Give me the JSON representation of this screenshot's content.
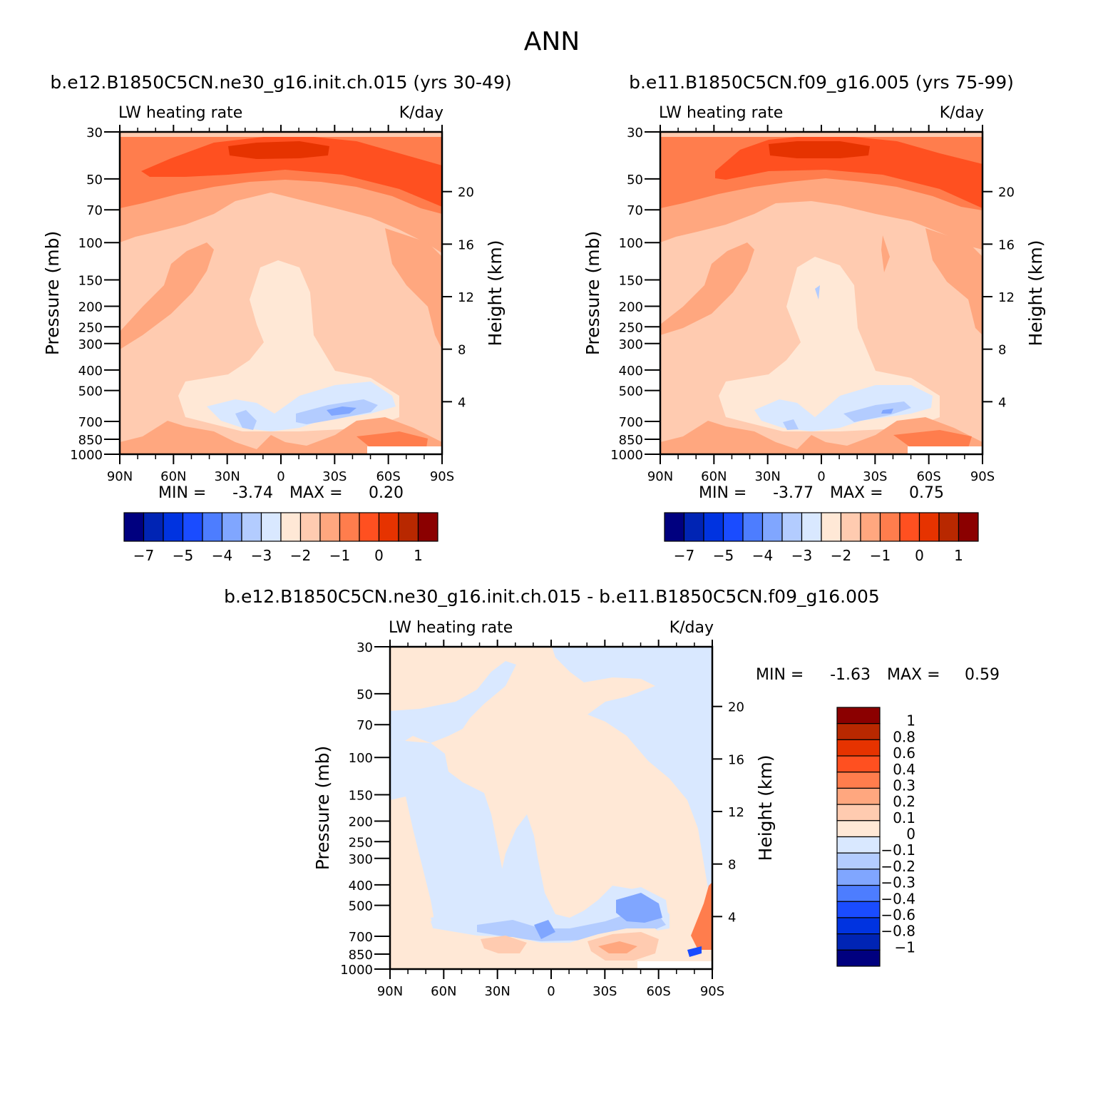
{
  "figure": {
    "title": "ANN"
  },
  "palette": {
    "neg": [
      "#00007f",
      "#0024b4",
      "#0033e0",
      "#1a4cff",
      "#4d7dff",
      "#80a6ff",
      "#b3ccff",
      "#d9e8ff"
    ],
    "pos": [
      "#ffe8d6",
      "#ffcbb0",
      "#ffa77f",
      "#ff7d4d",
      "#ff5020",
      "#e63300",
      "#b82800",
      "#8b0000"
    ]
  },
  "chart_data": [
    {
      "type": "heatmap",
      "title": "b.e12.B1850C5CN.ne30_g16.init.ch.015 (yrs 30-49)",
      "left_label": "LW heating rate",
      "right_label": "K/day",
      "x_ticks": [
        "90N",
        "60N",
        "30N",
        "0",
        "30S",
        "60S",
        "90S"
      ],
      "x_range": [
        90,
        -90
      ],
      "y_ticks": [
        30,
        50,
        70,
        100,
        150,
        200,
        250,
        300,
        400,
        500,
        700,
        850,
        1000
      ],
      "y_range": [
        1000,
        30
      ],
      "ylabel": "Pressure (mb)",
      "right_ticks": [
        20,
        16,
        12,
        8,
        4
      ],
      "right_axis_label": "Height (km)",
      "min_label": "MIN =",
      "min_value": "-3.74",
      "max_label": "MAX =",
      "max_value": "0.20",
      "colorbar": {
        "labels": [
          "-7",
          "-5",
          "-4",
          "-3",
          "-2",
          "-1",
          "0",
          "1"
        ],
        "orientation": "horizontal"
      }
    },
    {
      "type": "heatmap",
      "title": "b.e11.B1850C5CN.f09_g16.005 (yrs 75-99)",
      "left_label": "LW heating rate",
      "right_label": "K/day",
      "x_ticks": [
        "90N",
        "60N",
        "30N",
        "0",
        "30S",
        "60S",
        "90S"
      ],
      "x_range": [
        90,
        -90
      ],
      "y_ticks": [
        30,
        50,
        70,
        100,
        150,
        200,
        250,
        300,
        400,
        500,
        700,
        850,
        1000
      ],
      "y_range": [
        1000,
        30
      ],
      "ylabel": "Pressure (mb)",
      "right_ticks": [
        20,
        16,
        12,
        8,
        4
      ],
      "right_axis_label": "Height (km)",
      "min_label": "MIN =",
      "min_value": "-3.77",
      "max_label": "MAX =",
      "max_value": "0.75",
      "colorbar": {
        "labels": [
          "-7",
          "-5",
          "-4",
          "-3",
          "-2",
          "-1",
          "0",
          "1"
        ],
        "orientation": "horizontal"
      }
    },
    {
      "type": "heatmap",
      "title": "b.e12.B1850C5CN.ne30_g16.init.ch.015 - b.e11.B1850C5CN.f09_g16.005",
      "left_label": "LW heating rate",
      "right_label": "K/day",
      "x_ticks": [
        "90N",
        "60N",
        "30N",
        "0",
        "30S",
        "60S",
        "90S"
      ],
      "x_range": [
        90,
        -90
      ],
      "y_ticks": [
        30,
        50,
        70,
        100,
        150,
        200,
        250,
        300,
        400,
        500,
        700,
        850,
        1000
      ],
      "y_range": [
        1000,
        30
      ],
      "ylabel": "Pressure (mb)",
      "right_ticks": [
        20,
        16,
        12,
        8,
        4
      ],
      "right_axis_label": "Height (km)",
      "min_label": "MIN =",
      "min_value": "-1.63",
      "max_label": "MAX =",
      "max_value": "0.59",
      "colorbar": {
        "labels": [
          "1",
          "0.8",
          "0.6",
          "0.4",
          "0.3",
          "0.2",
          "0.1",
          "0",
          "-0.1",
          "-0.2",
          "-0.3",
          "-0.4",
          "-0.6",
          "-0.8",
          "-1"
        ],
        "orientation": "vertical"
      }
    }
  ]
}
